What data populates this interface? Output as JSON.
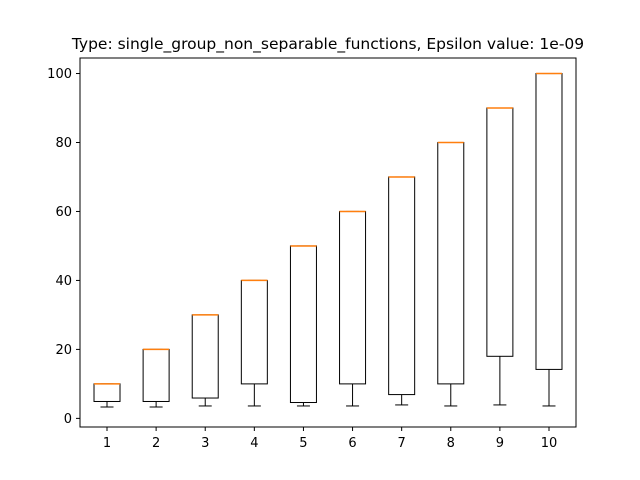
{
  "chart_data": {
    "type": "box",
    "title": "Type: single_group_non_separable_functions, Epsilon value: 1e-09",
    "xlabel": "",
    "ylabel": "",
    "categories": [
      "1",
      "2",
      "3",
      "4",
      "5",
      "6",
      "7",
      "8",
      "9",
      "10"
    ],
    "ylim": [
      -2.5,
      104.5
    ],
    "yticks": [
      "0",
      "20",
      "40",
      "60",
      "80",
      "100"
    ],
    "boxes": [
      {
        "whisker_low": 3.3,
        "q1": 4.9,
        "median": 10,
        "q3": 10,
        "whisker_high": 10
      },
      {
        "whisker_low": 3.3,
        "q1": 4.9,
        "median": 20,
        "q3": 20,
        "whisker_high": 20
      },
      {
        "whisker_low": 3.6,
        "q1": 5.9,
        "median": 30,
        "q3": 30,
        "whisker_high": 30
      },
      {
        "whisker_low": 3.6,
        "q1": 10,
        "median": 40,
        "q3": 40,
        "whisker_high": 40
      },
      {
        "whisker_low": 3.6,
        "q1": 4.6,
        "median": 50,
        "q3": 50,
        "whisker_high": 50
      },
      {
        "whisker_low": 3.6,
        "q1": 10,
        "median": 60,
        "q3": 60,
        "whisker_high": 60
      },
      {
        "whisker_low": 3.9,
        "q1": 6.9,
        "median": 70,
        "q3": 70,
        "whisker_high": 70
      },
      {
        "whisker_low": 3.6,
        "q1": 10,
        "median": 80,
        "q3": 80,
        "whisker_high": 80
      },
      {
        "whisker_low": 3.9,
        "q1": 18,
        "median": 90,
        "q3": 90,
        "whisker_high": 90
      },
      {
        "whisker_low": 3.6,
        "q1": 14.2,
        "median": 100,
        "q3": 100,
        "whisker_high": 100
      }
    ],
    "colors": {
      "box": "#000000",
      "median": "#ff7f0e",
      "background": "#ffffff"
    },
    "grid": false,
    "legend": "none"
  }
}
